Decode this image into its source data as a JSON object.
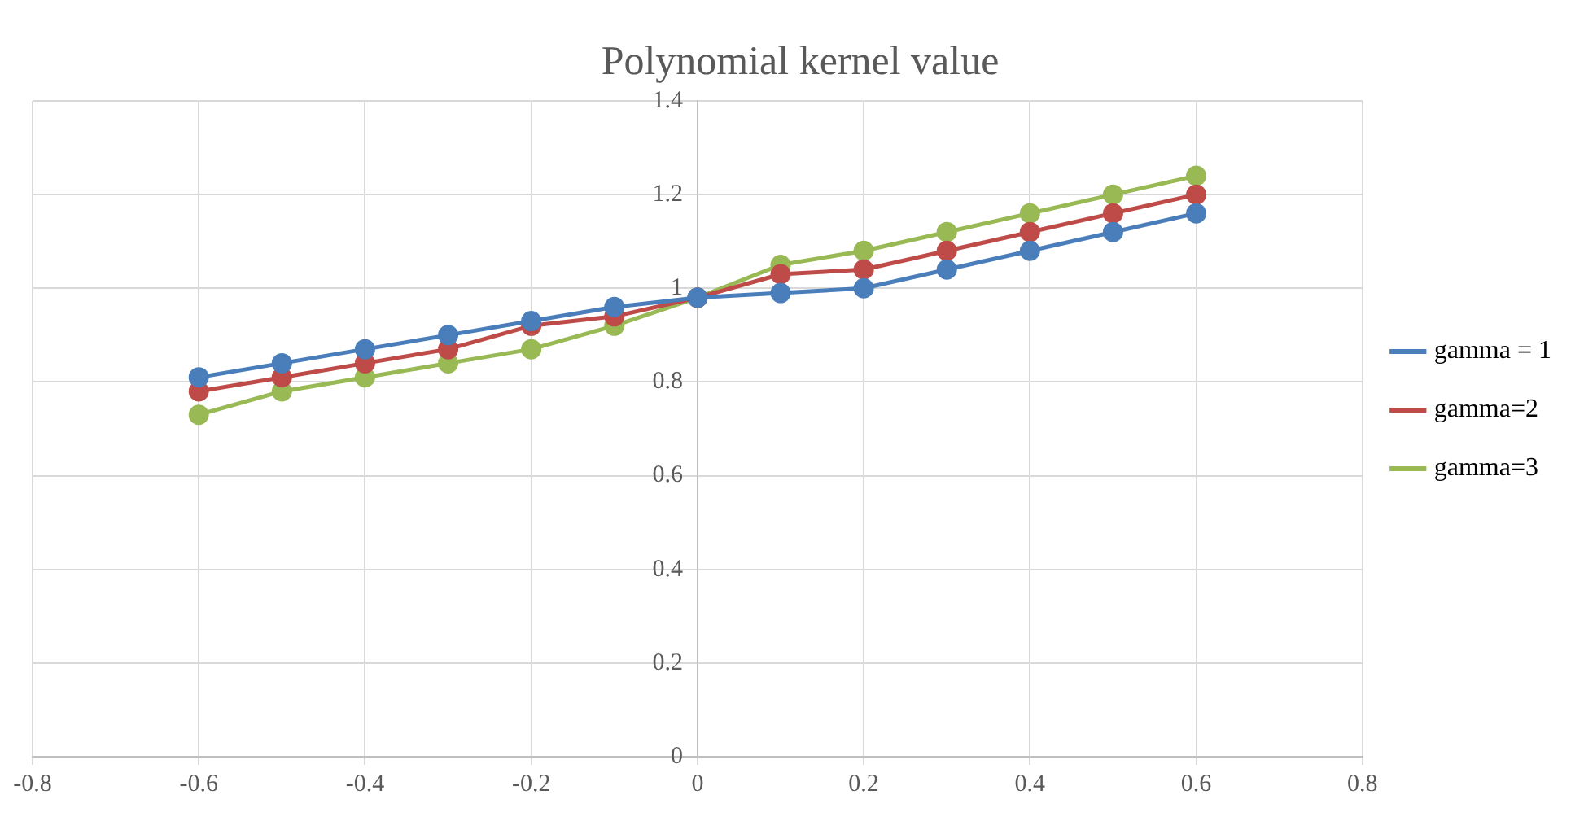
{
  "chart_data": {
    "type": "line",
    "title": "Polynomial kernel value",
    "x": [
      -0.6,
      -0.5,
      -0.4,
      -0.3,
      -0.2,
      -0.1,
      0,
      0.1,
      0.2,
      0.3,
      0.4,
      0.5,
      0.6
    ],
    "series": [
      {
        "name": "gamma = 1",
        "color": "#4a7ebb",
        "values": [
          0.81,
          0.84,
          0.87,
          0.9,
          0.93,
          0.96,
          0.98,
          0.99,
          1.0,
          1.04,
          1.08,
          1.12,
          1.16
        ]
      },
      {
        "name": "gamma=2",
        "color": "#be4b48",
        "values": [
          0.78,
          0.81,
          0.84,
          0.87,
          0.92,
          0.94,
          0.98,
          1.03,
          1.04,
          1.08,
          1.12,
          1.16,
          1.2
        ]
      },
      {
        "name": "gamma=3",
        "color": "#98b954",
        "values": [
          0.73,
          0.78,
          0.81,
          0.84,
          0.87,
          0.92,
          0.98,
          1.05,
          1.08,
          1.12,
          1.16,
          1.2,
          1.24
        ]
      }
    ],
    "xlim": [
      -0.8,
      0.8
    ],
    "xticks": [
      -0.8,
      -0.6,
      -0.4,
      -0.2,
      0,
      0.2,
      0.4,
      0.6,
      0.8
    ],
    "ylim": [
      0,
      1.4
    ],
    "yticks": [
      0,
      0.2,
      0.4,
      0.6,
      0.8,
      1,
      1.2,
      1.4
    ],
    "grid": true,
    "legend": "right",
    "marker": "circle",
    "line_style": "solid"
  }
}
